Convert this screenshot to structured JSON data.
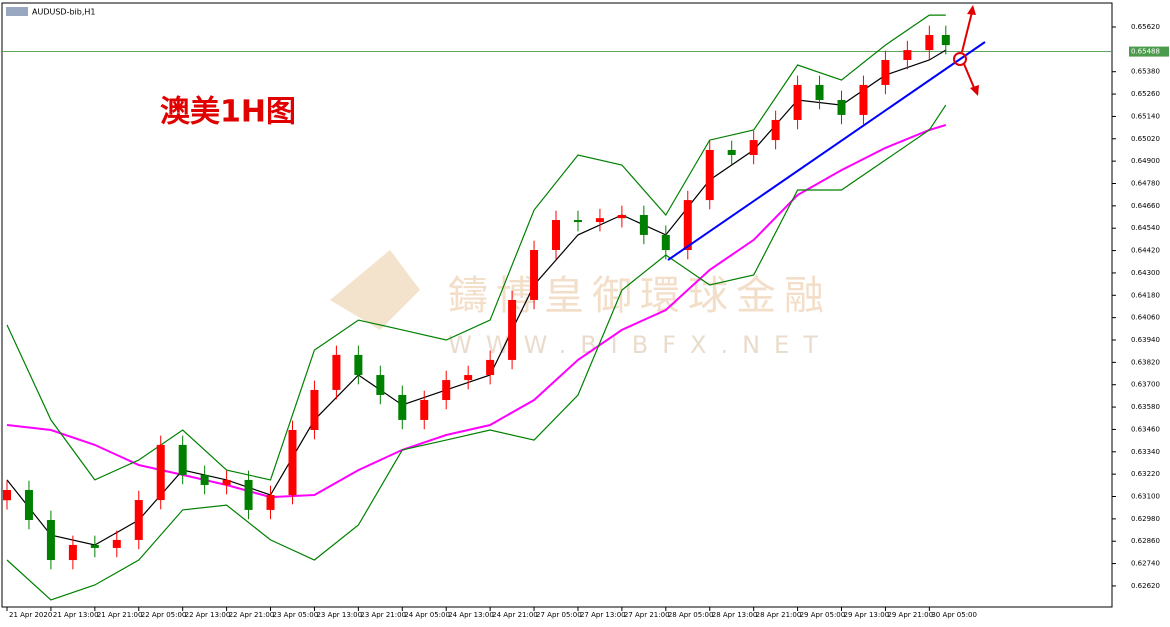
{
  "chart_data": {
    "type": "candlestick",
    "symbol": "AUDUSD-bib,H1",
    "title": "澳美1H图",
    "watermark": "鑄博皇御環球金融",
    "watermark_url": "WWW.BIBFX.NET",
    "up_color": "#ff0000",
    "down_color": "#008000",
    "x": [
      0,
      4,
      8,
      12,
      16,
      20,
      24,
      28,
      32,
      36,
      40,
      44,
      48,
      52,
      56,
      60,
      64,
      68,
      72,
      76,
      80,
      84,
      88,
      92,
      96,
      100,
      104,
      108,
      112,
      116,
      120,
      124,
      128,
      132,
      136,
      140,
      144,
      148,
      152,
      156,
      160,
      164,
      168,
      171
    ],
    "open": [
      0.6308,
      0.63135,
      0.62974,
      0.62759,
      0.6284,
      0.62824,
      0.62867,
      0.63081,
      0.63377,
      0.63216,
      0.63162,
      0.63189,
      0.63028,
      0.63108,
      0.63457,
      0.63672,
      0.6386,
      0.63752,
      0.63645,
      0.63511,
      0.63618,
      0.63725,
      0.63752,
      0.63833,
      0.64155,
      0.64423,
      0.64584,
      0.64573,
      0.64594,
      0.64611,
      0.64504,
      0.64423,
      0.64691,
      0.6496,
      0.64933,
      0.65013,
      0.65121,
      0.65309,
      0.65228,
      0.65148,
      0.65309,
      0.65443,
      0.65496,
      0.65577
    ],
    "high": [
      0.63185,
      0.63185,
      0.63024,
      0.6289,
      0.6289,
      0.62917,
      0.63131,
      0.63427,
      0.63427,
      0.63266,
      0.63239,
      0.63239,
      0.63158,
      0.63507,
      0.63722,
      0.6391,
      0.6391,
      0.63802,
      0.63695,
      0.63668,
      0.63775,
      0.63802,
      0.63883,
      0.64205,
      0.64473,
      0.64634,
      0.64634,
      0.64644,
      0.64661,
      0.64661,
      0.64554,
      0.64741,
      0.6501,
      0.6501,
      0.65063,
      0.65171,
      0.65359,
      0.65359,
      0.65278,
      0.65359,
      0.65493,
      0.65546,
      0.65627,
      0.65627
    ],
    "low": [
      0.6303,
      0.62924,
      0.62709,
      0.62709,
      0.62774,
      0.62774,
      0.62817,
      0.63031,
      0.63166,
      0.63112,
      0.63112,
      0.62978,
      0.62978,
      0.63058,
      0.63407,
      0.63622,
      0.63702,
      0.63595,
      0.63461,
      0.63461,
      0.63568,
      0.63675,
      0.63702,
      0.63783,
      0.64105,
      0.64373,
      0.64523,
      0.64523,
      0.64544,
      0.64454,
      0.64373,
      0.64373,
      0.64641,
      0.64883,
      0.64883,
      0.64963,
      0.65071,
      0.65178,
      0.65098,
      0.65098,
      0.65259,
      0.65393,
      0.65446,
      0.65473
    ],
    "close": [
      0.63135,
      0.62974,
      0.62759,
      0.6284,
      0.62824,
      0.62867,
      0.63081,
      0.63377,
      0.63216,
      0.63162,
      0.63189,
      0.63028,
      0.63108,
      0.63457,
      0.63672,
      0.6386,
      0.63752,
      0.63645,
      0.63511,
      0.63618,
      0.63725,
      0.63752,
      0.63833,
      0.64155,
      0.64423,
      0.64584,
      0.64573,
      0.64594,
      0.64611,
      0.64504,
      0.64423,
      0.64691,
      0.6496,
      0.64933,
      0.65013,
      0.65121,
      0.65309,
      0.65228,
      0.65148,
      0.65309,
      0.65443,
      0.65496,
      0.65577,
      0.65523
    ],
    "overlay_x": [
      0,
      8,
      16,
      24,
      32,
      40,
      48,
      56,
      64,
      72,
      80,
      88,
      96,
      104,
      112,
      120,
      128,
      136,
      144,
      152,
      160,
      168,
      171
    ],
    "overlays": [
      {
        "color": "#ff00ff",
        "values": [
          0.63484,
          0.63457,
          0.63377,
          0.63269,
          0.63216,
          0.63162,
          0.63097,
          0.63108,
          0.63242,
          0.6335,
          0.6343,
          0.63484,
          0.63618,
          0.63833,
          0.63994,
          0.64101,
          0.64316,
          0.64477,
          0.64718,
          0.64852,
          0.64971,
          0.65067,
          0.65094
        ]
      },
      {
        "color": "#008000",
        "values": [
          0.64021,
          0.63511,
          0.63189,
          0.63296,
          0.63457,
          0.63242,
          0.63189,
          0.63886,
          0.64047,
          0.63994,
          0.6394,
          0.64047,
          0.64638,
          0.64933,
          0.64879,
          0.64611,
          0.65013,
          0.65067,
          0.65416,
          0.65335,
          0.65523,
          0.65684,
          0.65684
        ]
      },
      {
        "color": "#008000",
        "values": [
          0.62759,
          0.62545,
          0.62625,
          0.62759,
          0.63028,
          0.63054,
          0.62867,
          0.62759,
          0.62947,
          0.6335,
          0.63403,
          0.63457,
          0.63403,
          0.63645,
          0.64208,
          0.64396,
          0.64235,
          0.64289,
          0.64745,
          0.64745,
          0.64906,
          0.65067,
          0.65201
        ]
      },
      {
        "color": "#000000",
        "values": [
          0.63189,
          0.62893,
          0.6284,
          0.62974,
          0.63242,
          0.63189,
          0.63108,
          0.63511,
          0.63752,
          0.63591,
          0.63672,
          0.63752,
          0.64235,
          0.64504,
          0.64611,
          0.64504,
          0.64799,
          0.6496,
          0.65228,
          0.65201,
          0.65362,
          0.65443,
          0.65496
        ]
      }
    ],
    "current_price": {
      "value": 0.65488,
      "label": "0.65488"
    },
    "xlim": [
      -0.91,
      201.27
    ],
    "ylim": [
      0.62507,
      0.65738
    ],
    "yticks": [
      {
        "value": 0.6562,
        "label": "0.65620"
      },
      {
        "value": 0.6538,
        "label": "0.65380"
      },
      {
        "value": 0.6526,
        "label": "0.65260"
      },
      {
        "value": 0.6514,
        "label": "0.65140"
      },
      {
        "value": 0.6502,
        "label": "0.65020"
      },
      {
        "value": 0.649,
        "label": "0.64900"
      },
      {
        "value": 0.6478,
        "label": "0.64780"
      },
      {
        "value": 0.6466,
        "label": "0.64660"
      },
      {
        "value": 0.6454,
        "label": "0.64540"
      },
      {
        "value": 0.6442,
        "label": "0.64420"
      },
      {
        "value": 0.643,
        "label": "0.64300"
      },
      {
        "value": 0.6418,
        "label": "0.64180"
      },
      {
        "value": 0.6406,
        "label": "0.64060"
      },
      {
        "value": 0.6394,
        "label": "0.63940"
      },
      {
        "value": 0.6382,
        "label": "0.63820"
      },
      {
        "value": 0.637,
        "label": "0.63700"
      },
      {
        "value": 0.6358,
        "label": "0.63580"
      },
      {
        "value": 0.6346,
        "label": "0.63460"
      },
      {
        "value": 0.6334,
        "label": "0.63340"
      },
      {
        "value": 0.6322,
        "label": "0.63220"
      },
      {
        "value": 0.631,
        "label": "0.63100"
      },
      {
        "value": 0.6298,
        "label": "0.62980"
      },
      {
        "value": 0.6286,
        "label": "0.62860"
      },
      {
        "value": 0.6274,
        "label": "0.62740"
      },
      {
        "value": 0.6262,
        "label": "0.62620"
      }
    ],
    "xticks": [
      {
        "value": 0,
        "label": "21 Apr 2020"
      },
      {
        "value": 8,
        "label": "21 Apr 13:00"
      },
      {
        "value": 16,
        "label": "21 Apr 21:00"
      },
      {
        "value": 24,
        "label": "22 Apr 05:00"
      },
      {
        "value": 32,
        "label": "22 Apr 13:00"
      },
      {
        "value": 40,
        "label": "22 Apr 21:00"
      },
      {
        "value": 48,
        "label": "23 Apr 05:00"
      },
      {
        "value": 56,
        "label": "23 Apr 13:00"
      },
      {
        "value": 64,
        "label": "23 Apr 21:00"
      },
      {
        "value": 72,
        "label": "24 Apr 05:00"
      },
      {
        "value": 80,
        "label": "24 Apr 13:00"
      },
      {
        "value": 88,
        "label": "24 Apr 21:00"
      },
      {
        "value": 96,
        "label": "27 Apr 05:00"
      },
      {
        "value": 104,
        "label": "27 Apr 13:00"
      },
      {
        "value": 112,
        "label": "27 Apr 21:00"
      },
      {
        "value": 120,
        "label": "28 Apr 05:00"
      },
      {
        "value": 128,
        "label": "28 Apr 13:00"
      },
      {
        "value": 136,
        "label": "28 Apr 21:00"
      },
      {
        "value": 144,
        "label": "29 Apr 05:00"
      },
      {
        "value": 152,
        "label": "29 Apr 13:00"
      },
      {
        "value": 160,
        "label": "29 Apr 21:00"
      },
      {
        "value": 168,
        "label": "30 Apr 05:00"
      }
    ]
  }
}
